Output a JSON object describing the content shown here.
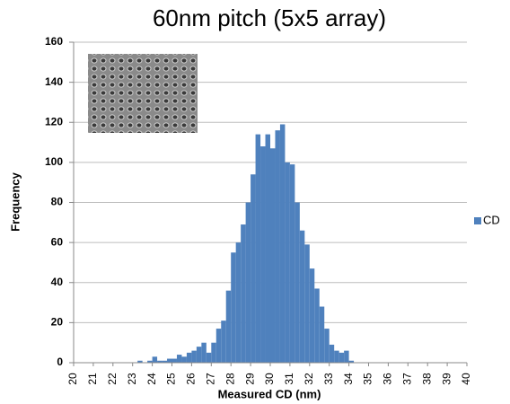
{
  "chart_data": {
    "type": "histogram",
    "title": "60nm pitch (5x5 array)",
    "x_label": "Measured CD (nm)",
    "y_label": "Frequency",
    "bins": [
      20,
      20.25,
      20.5,
      20.75,
      21,
      21.25,
      21.5,
      21.75,
      22,
      22.25,
      22.5,
      22.75,
      23,
      23.25,
      23.5,
      23.75,
      24,
      24.25,
      24.5,
      24.75,
      25,
      25.25,
      25.5,
      25.75,
      26,
      26.25,
      26.5,
      26.75,
      27,
      27.25,
      27.5,
      27.75,
      28,
      28.25,
      28.5,
      28.75,
      29,
      29.25,
      29.5,
      29.75,
      30,
      30.25,
      30.5,
      30.75,
      31,
      31.25,
      31.5,
      31.75,
      32,
      32.25,
      32.5,
      32.75,
      33,
      33.25,
      33.5,
      33.75,
      34,
      34.25,
      34.5,
      34.75,
      35,
      35.25,
      35.5,
      35.75,
      36,
      36.25,
      36.5,
      36.75,
      37,
      37.25,
      37.5,
      37.75,
      38,
      38.25,
      38.5,
      38.75,
      39,
      39.25,
      39.5,
      39.75,
      40
    ],
    "series": [
      {
        "name": "CD",
        "color": "#4f81bd",
        "values": [
          0,
          0,
          0,
          0,
          0,
          0,
          0,
          0,
          0,
          0,
          0,
          0,
          0,
          1,
          0,
          1,
          3,
          1,
          1,
          2,
          2,
          4,
          3,
          5,
          6,
          8,
          10,
          5,
          10,
          17,
          21,
          36,
          55,
          60,
          69,
          80,
          94,
          114,
          108,
          114,
          107,
          116,
          119,
          100,
          99,
          80,
          66,
          59,
          47,
          37,
          28,
          17,
          9,
          6,
          5,
          6,
          1,
          0,
          0,
          0,
          0,
          0,
          0,
          0,
          0,
          0,
          0,
          0,
          0,
          0,
          0,
          0,
          0,
          0,
          0,
          0,
          0,
          0,
          0,
          0
        ]
      }
    ],
    "xlim": [
      20,
      40
    ],
    "xticks": [
      20,
      21,
      22,
      23,
      24,
      25,
      26,
      27,
      28,
      29,
      30,
      31,
      32,
      33,
      34,
      35,
      36,
      37,
      38,
      39,
      40
    ],
    "ylim": [
      0,
      160
    ],
    "yticks": [
      0,
      20,
      40,
      60,
      80,
      100,
      120,
      140,
      160
    ],
    "grid": true,
    "legend": "right"
  }
}
